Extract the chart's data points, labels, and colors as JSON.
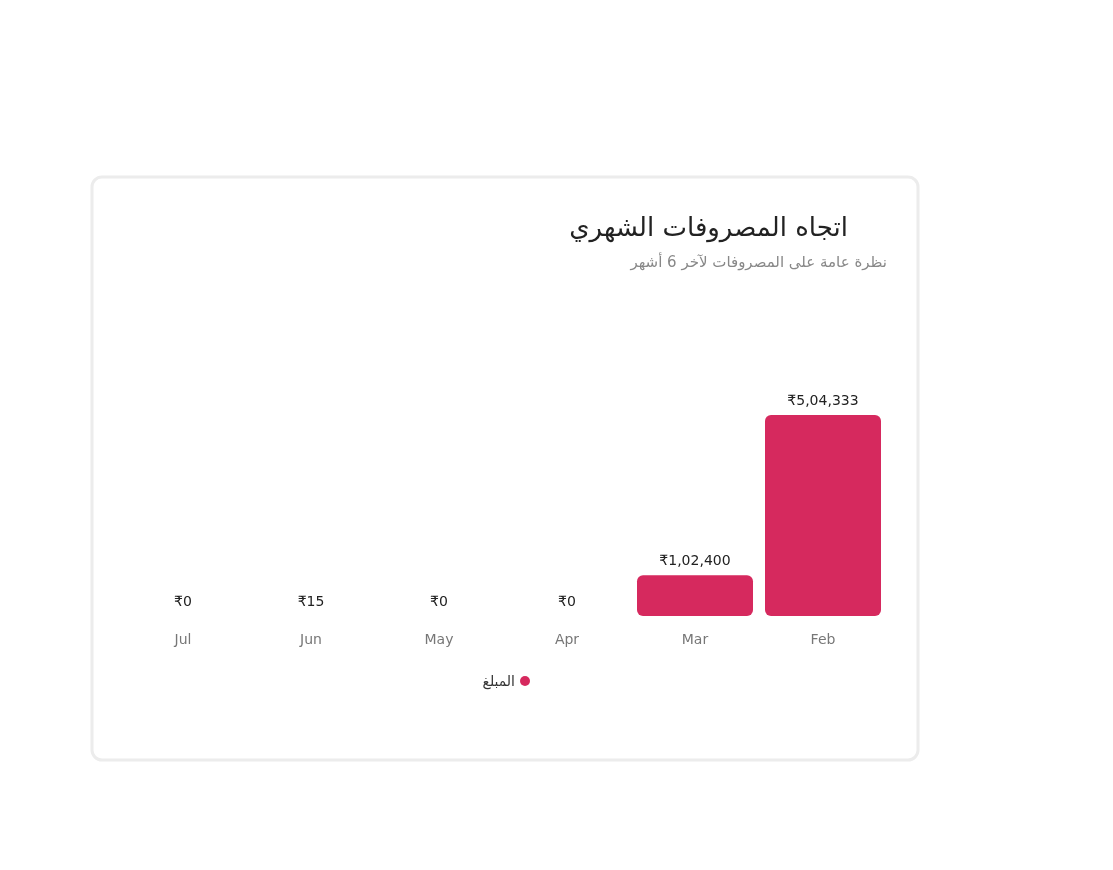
{
  "chart_data": {
    "type": "bar",
    "title": "اتجاه المصروفات الشهري",
    "subtitle": "نظرة عامة على المصروفات لآخر 6 أشهر",
    "categories": [
      "Jul",
      "Jun",
      "May",
      "Apr",
      "Mar",
      "Feb"
    ],
    "series": [
      {
        "name": "المبلغ",
        "color": "#d6295e",
        "values": [
          0,
          15,
          0,
          0,
          102400,
          504333
        ],
        "value_labels": [
          "₹0",
          "₹15",
          "₹0",
          "₹0",
          "₹1,02,400",
          "₹5,04,333"
        ]
      }
    ],
    "legend": "bottom"
  }
}
